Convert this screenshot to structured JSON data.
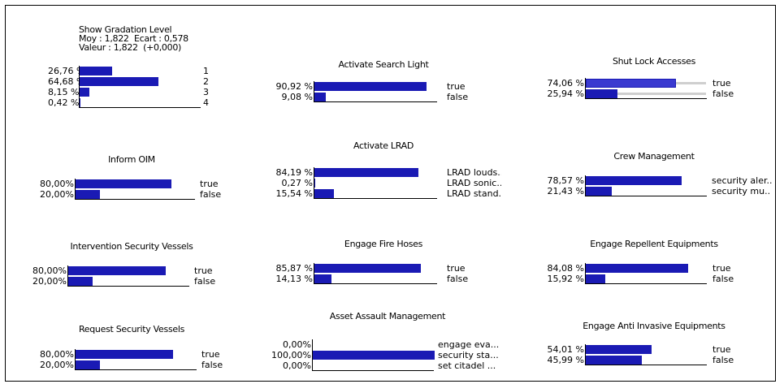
{
  "nodes": {
    "show_gradation": {
      "title_lines": [
        "Show Gradation Level",
        "Moy : 1,822  Ecart : 0,578",
        "Valeur : 1,822  (+0,000)"
      ],
      "states": [
        {
          "pct": "26,76 %",
          "value": 26.76,
          "label": "1"
        },
        {
          "pct": "64,68 %",
          "value": 64.68,
          "label": "2"
        },
        {
          "pct": "8,15 %",
          "value": 8.15,
          "label": "3"
        },
        {
          "pct": "0,42 %",
          "value": 0.42,
          "label": "4"
        }
      ]
    },
    "activate_searchlight": {
      "title": "Activate Search Light",
      "states": [
        {
          "pct": "90,92 %",
          "value": 90.92,
          "label": "true"
        },
        {
          "pct": "9,08 %",
          "value": 9.08,
          "label": "false"
        }
      ]
    },
    "shut_lock_accesses": {
      "title": "Shut Lock Accesses",
      "states": [
        {
          "pct": "74,06 %",
          "value": 74.06,
          "label": "true"
        },
        {
          "pct": "25,94 %",
          "value": 25.94,
          "label": "false"
        }
      ]
    },
    "inform_oim": {
      "title": "Inform OIM",
      "states": [
        {
          "pct": "80,00%",
          "value": 80.0,
          "label": "true"
        },
        {
          "pct": "20,00%",
          "value": 20.0,
          "label": "false"
        }
      ]
    },
    "activate_lrad": {
      "title": "Activate LRAD",
      "states": [
        {
          "pct": "84,19 %",
          "value": 84.19,
          "label": "LRAD louds..."
        },
        {
          "pct": "0,27 %",
          "value": 0.27,
          "label": "LRAD sonic..."
        },
        {
          "pct": "15,54 %",
          "value": 15.54,
          "label": "LRAD stand.."
        }
      ]
    },
    "crew_management": {
      "title": "Crew Management",
      "states": [
        {
          "pct": "78,57 %",
          "value": 78.57,
          "label": "security aler.."
        },
        {
          "pct": "21,43 %",
          "value": 21.43,
          "label": "security mu.."
        }
      ]
    },
    "intervention_security_vessels": {
      "title": "Intervention Security Vessels",
      "states": [
        {
          "pct": "80,00%",
          "value": 80.0,
          "label": "true"
        },
        {
          "pct": "20,00%",
          "value": 20.0,
          "label": "false"
        }
      ]
    },
    "engage_fire_hoses": {
      "title": "Engage Fire Hoses",
      "states": [
        {
          "pct": "85,87 %",
          "value": 85.87,
          "label": "true"
        },
        {
          "pct": "14,13 %",
          "value": 14.13,
          "label": "false"
        }
      ]
    },
    "engage_repellent_equipments": {
      "title": "Engage Repellent Equipments",
      "states": [
        {
          "pct": "84,08 %",
          "value": 84.08,
          "label": "true"
        },
        {
          "pct": "15,92 %",
          "value": 15.92,
          "label": "false"
        }
      ]
    },
    "request_security_vessels": {
      "title": "Request Security Vessels",
      "states": [
        {
          "pct": "80,00%",
          "value": 80.0,
          "label": "true"
        },
        {
          "pct": "20,00%",
          "value": 20.0,
          "label": "false"
        }
      ]
    },
    "asset_assault_management": {
      "title": "Asset Assault Management",
      "states": [
        {
          "pct": "0,00%",
          "value": 0.0,
          "label": "engage eva..."
        },
        {
          "pct": "100,00%",
          "value": 100.0,
          "label": "security sta..."
        },
        {
          "pct": "0,00%",
          "value": 0.0,
          "label": "set citadel ..."
        }
      ]
    },
    "engage_anti_invasive_equipments": {
      "title": "Engage Anti Invasive Equipments",
      "states": [
        {
          "pct": "54,01 %",
          "value": 54.01,
          "label": "true"
        },
        {
          "pct": "45,99 %",
          "value": 45.99,
          "label": "false"
        }
      ]
    }
  },
  "colors": {
    "bar": "#1a1ab4",
    "ghost": "#cfcfcf",
    "border": "#000000"
  }
}
